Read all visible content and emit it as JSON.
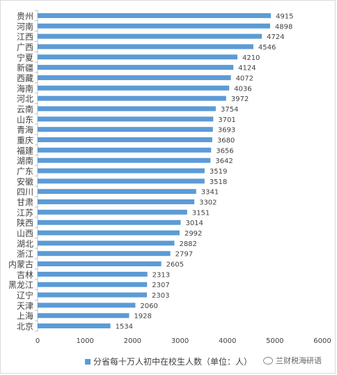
{
  "chart_data": {
    "type": "bar",
    "orientation": "horizontal",
    "categories": [
      "贵州",
      "河南",
      "江西",
      "广西",
      "宁夏",
      "新疆",
      "西藏",
      "海南",
      "河北",
      "云南",
      "山东",
      "青海",
      "重庆",
      "福建",
      "湖南",
      "广东",
      "安徽",
      "四川",
      "甘肃",
      "江苏",
      "陕西",
      "山西",
      "湖北",
      "浙江",
      "内蒙古",
      "吉林",
      "黑龙江",
      "辽宁",
      "天津",
      "上海",
      "北京"
    ],
    "series": [
      {
        "name": "分省每十万人初中在校生人数（单位：人）",
        "values": [
          4915,
          4898,
          4724,
          4546,
          4210,
          4124,
          4072,
          4036,
          3972,
          3754,
          3701,
          3693,
          3680,
          3656,
          3642,
          3519,
          3518,
          3341,
          3302,
          3151,
          3014,
          2992,
          2882,
          2797,
          2605,
          2313,
          2307,
          2303,
          2060,
          1928,
          1534
        ]
      }
    ],
    "xlim": [
      0,
      6000
    ],
    "xticks": [
      0,
      1000,
      2000,
      3000,
      4000,
      5000,
      6000
    ],
    "grid": false,
    "legend_position": "bottom",
    "bar_color": "#5b9bd5"
  },
  "legend": {
    "label": "分省每十万人初中在校生人数（单位：人）"
  },
  "watermark": {
    "text": "兰财税海研语"
  }
}
